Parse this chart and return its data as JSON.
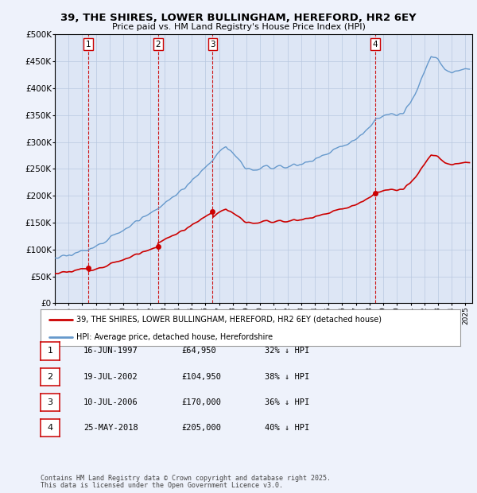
{
  "title1": "39, THE SHIRES, LOWER BULLINGHAM, HEREFORD, HR2 6EY",
  "title2": "Price paid vs. HM Land Registry's House Price Index (HPI)",
  "ylim": [
    0,
    500000
  ],
  "yticks": [
    0,
    50000,
    100000,
    150000,
    200000,
    250000,
    300000,
    350000,
    400000,
    450000,
    500000
  ],
  "xlim_start": 1995.0,
  "xlim_end": 2025.5,
  "sale_dates": [
    1997.46,
    2002.54,
    2006.53,
    2018.39
  ],
  "sale_prices": [
    64950,
    104950,
    170000,
    205000
  ],
  "sale_labels": [
    "1",
    "2",
    "3",
    "4"
  ],
  "legend_red": "39, THE SHIRES, LOWER BULLINGHAM, HEREFORD, HR2 6EY (detached house)",
  "legend_blue": "HPI: Average price, detached house, Herefordshire",
  "table_rows": [
    [
      "1",
      "16-JUN-1997",
      "£64,950",
      "32% ↓ HPI"
    ],
    [
      "2",
      "19-JUL-2002",
      "£104,950",
      "38% ↓ HPI"
    ],
    [
      "3",
      "10-JUL-2006",
      "£170,000",
      "36% ↓ HPI"
    ],
    [
      "4",
      "25-MAY-2018",
      "£205,000",
      "40% ↓ HPI"
    ]
  ],
  "footnote1": "Contains HM Land Registry data © Crown copyright and database right 2025.",
  "footnote2": "This data is licensed under the Open Government Licence v3.0.",
  "bg_color": "#eef2fb",
  "plot_bg": "#dde6f5",
  "grid_color": "#b8c8e0",
  "red_line_color": "#cc0000",
  "blue_line_color": "#6699cc",
  "dashed_color": "#cc0000"
}
